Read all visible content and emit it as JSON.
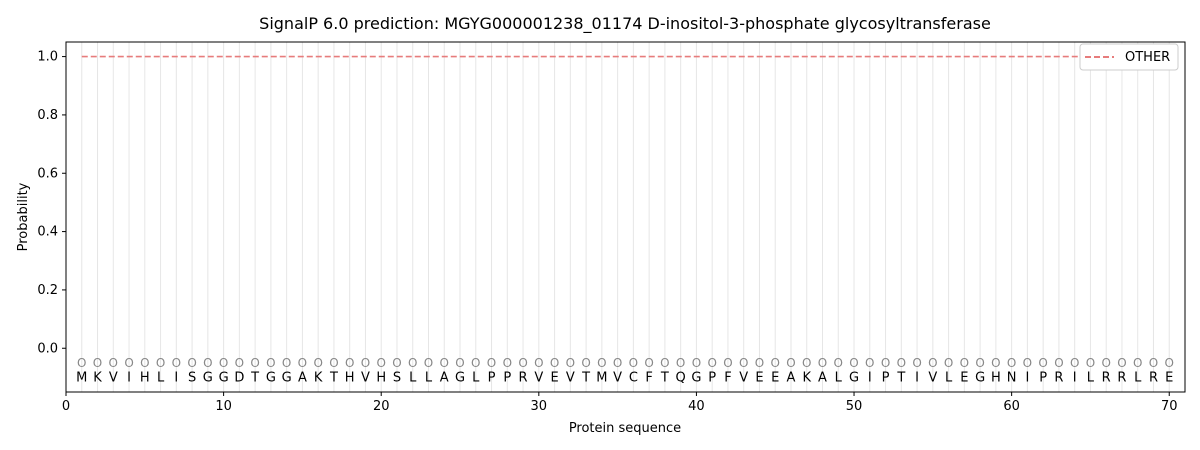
{
  "chart_data": {
    "type": "line",
    "title": "SignalP 6.0 prediction: MGYG000001238_01174 D-inositol-3-phosphate glycosyltransferase",
    "xlabel": "Protein sequence",
    "ylabel": "Probability",
    "xlim": [
      0,
      71
    ],
    "ylim": [
      -0.15,
      1.05
    ],
    "xticks": [
      0,
      10,
      20,
      30,
      40,
      50,
      60,
      70
    ],
    "yticks": [
      0.0,
      0.2,
      0.4,
      0.6,
      0.8,
      1.0
    ],
    "ytick_labels": [
      "0.0",
      "0.2",
      "0.4",
      "0.6",
      "0.8",
      "1.0"
    ],
    "sequence": [
      "M",
      "K",
      "V",
      "I",
      "H",
      "L",
      "I",
      "S",
      "G",
      "G",
      "D",
      "T",
      "G",
      "G",
      "A",
      "K",
      "T",
      "H",
      "V",
      "H",
      "S",
      "L",
      "L",
      "A",
      "G",
      "L",
      "P",
      "P",
      "R",
      "V",
      "E",
      "V",
      "T",
      "M",
      "V",
      "C",
      "F",
      "T",
      "Q",
      "G",
      "P",
      "F",
      "V",
      "E",
      "E",
      "A",
      "K",
      "A",
      "L",
      "G",
      "I",
      "P",
      "T",
      "I",
      "V",
      "L",
      "E",
      "G",
      "H",
      "N",
      "I",
      "P",
      "R",
      "I",
      "L",
      "R",
      "R",
      "L",
      "R",
      "E"
    ],
    "region_label": "O",
    "series": [
      {
        "name": "OTHER",
        "color": "#e77c7c",
        "style": "dashed",
        "x_start": 1,
        "x_end": 70,
        "value": 1.0
      }
    ],
    "legend_position": "top-right",
    "grid": "vertical lines at each residue"
  }
}
